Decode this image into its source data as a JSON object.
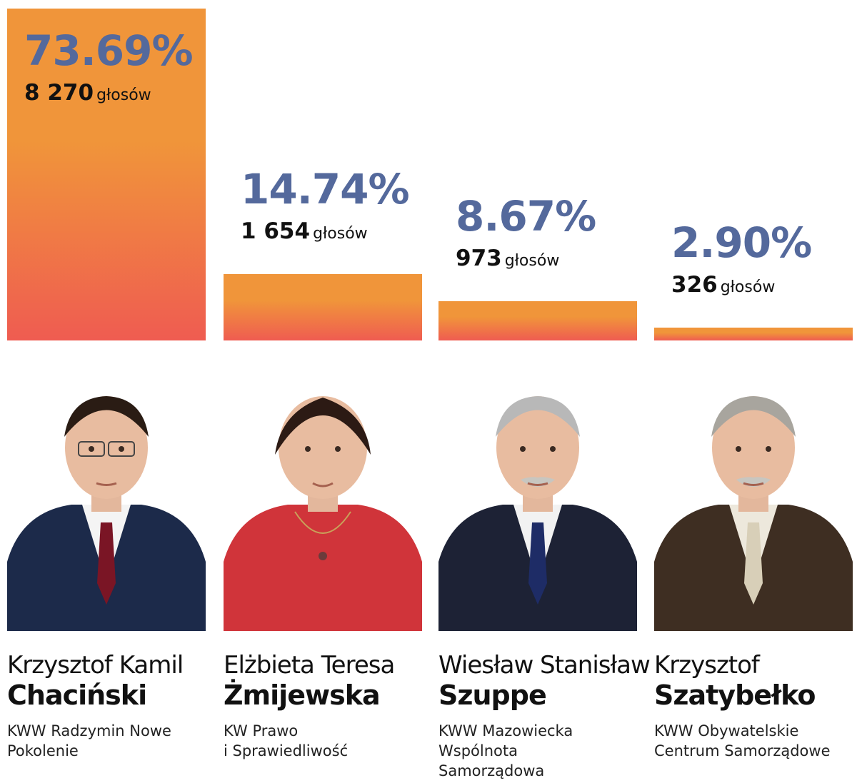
{
  "chart_data": {
    "type": "bar",
    "categories": [
      "Krzysztof Kamil Chaciński",
      "Elżbieta Teresa Żmijewska",
      "Wiesław Stanisław Szuppe",
      "Krzysztof Szatybełko"
    ],
    "values": [
      73.69,
      14.74,
      8.67,
      2.9
    ],
    "ylim": [
      0,
      100
    ],
    "grid": false,
    "legend": "none"
  },
  "candidates": [
    {
      "pct": "73.69%",
      "votes": "8 270",
      "votes_unit": "głosów",
      "first_name": "Krzysztof Kamil",
      "last_name": "Chaciński",
      "party": "KWW Radzymin Nowe\nPokolenie",
      "suit": "#1c2a4a",
      "tie": "#7a1525",
      "shirt": "#f4f4f4",
      "hair": "#2a1c14"
    },
    {
      "pct": "14.74%",
      "votes": "1 654",
      "votes_unit": "głosów",
      "first_name": "Elżbieta Teresa",
      "last_name": "Żmijewska",
      "party": "KW Prawo\ni Sprawiedliwość",
      "suit": "#d0343a",
      "tie": "#d0343a",
      "shirt": "#d0343a",
      "hair": "#2c1a14"
    },
    {
      "pct": "8.67%",
      "votes": "973",
      "votes_unit": "głosów",
      "first_name": "Wiesław Stanisław",
      "last_name": "Szuppe",
      "party": "KWW Mazowiecka\nWspólnota\nSamorządowa",
      "suit": "#1d2235",
      "tie": "#1e2c66",
      "shirt": "#f2f2f2",
      "hair": "#b8b8b8"
    },
    {
      "pct": "2.90%",
      "votes": "326",
      "votes_unit": "głosów",
      "first_name": "Krzysztof",
      "last_name": "Szatybełko",
      "party": "KWW Obywatelskie\nCentrum Samorządowe",
      "suit": "#3e2e22",
      "tie": "#d8cfb8",
      "shirt": "#ede8dc",
      "hair": "#a8a59e"
    }
  ]
}
